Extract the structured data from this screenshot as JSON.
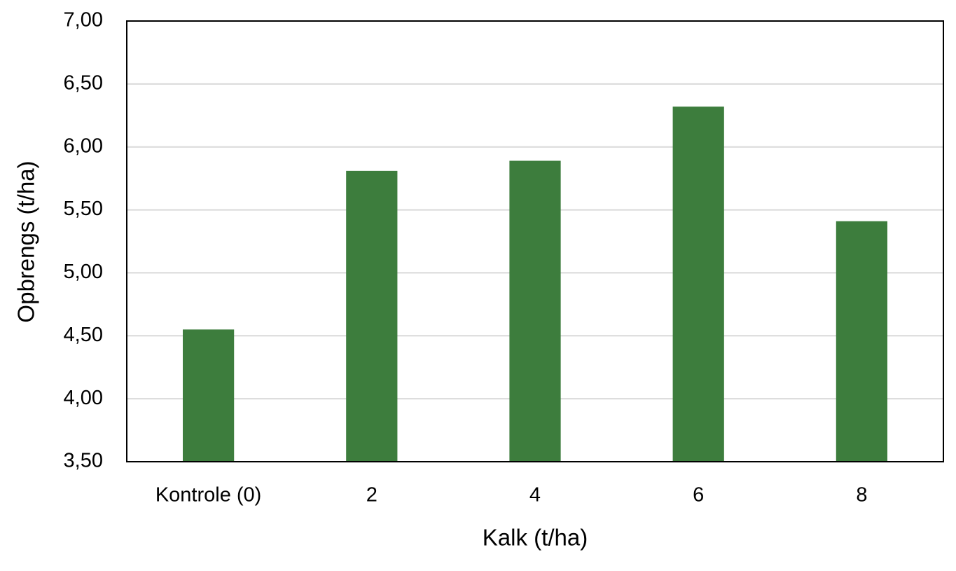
{
  "chart_data": {
    "type": "bar",
    "x_label": "Kalk (t/ha)",
    "y_label": "Opbrengs (t/ha)",
    "categories": [
      "Kontrole (0)",
      "2",
      "4",
      "6",
      "8"
    ],
    "values": [
      4.55,
      5.81,
      5.89,
      6.32,
      5.41
    ],
    "color": "#3d7d3d",
    "ylim": [
      3.5,
      7.0
    ],
    "yticks": [
      {
        "value": 3.5,
        "label": "3,50"
      },
      {
        "value": 4.0,
        "label": "4,00"
      },
      {
        "value": 4.5,
        "label": "4,50"
      },
      {
        "value": 5.0,
        "label": "5,00"
      },
      {
        "value": 5.5,
        "label": "5,50"
      },
      {
        "value": 6.0,
        "label": "6,00"
      },
      {
        "value": 6.5,
        "label": "6,50"
      },
      {
        "value": 7.0,
        "label": "7,00"
      }
    ],
    "grid": true
  }
}
